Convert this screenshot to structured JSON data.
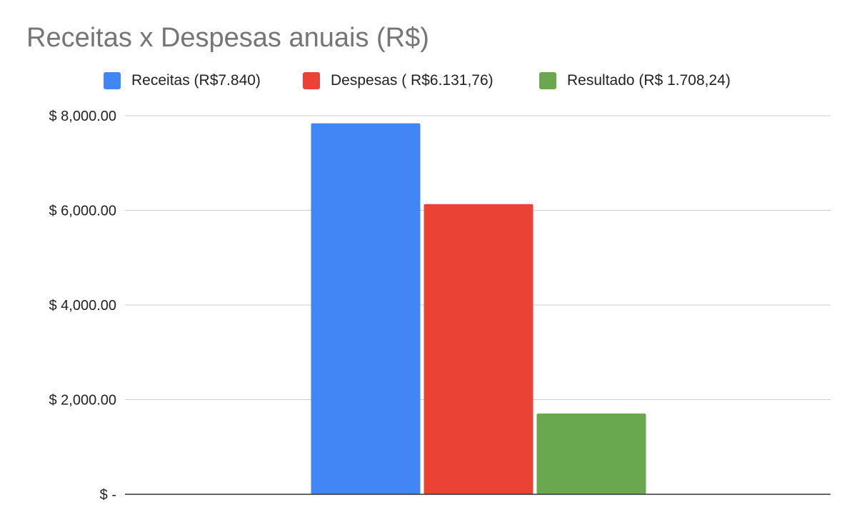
{
  "chart_data": {
    "type": "bar",
    "title": "Receitas x Despesas anuais (R$)",
    "xlabel": "",
    "ylabel": "",
    "ylim": [
      0,
      8000
    ],
    "y_ticks": [
      0,
      2000,
      4000,
      6000,
      8000
    ],
    "y_tick_labels": [
      "$ -",
      "$ 2,000.00",
      "$ 4,000.00",
      "$ 6,000.00",
      "$ 8,000.00"
    ],
    "grid": true,
    "legend_position": "top",
    "categories": [
      ""
    ],
    "series": [
      {
        "name": "Receitas (R$7.840)",
        "color": "#4285f4",
        "values": [
          7840
        ]
      },
      {
        "name": "Despesas ( R$6.131,76)",
        "color": "#ea4335",
        "values": [
          6131.76
        ]
      },
      {
        "name": "Resultado (R$ 1.708,24)",
        "color": "#6aa84f",
        "values": [
          1708.24
        ]
      }
    ]
  }
}
